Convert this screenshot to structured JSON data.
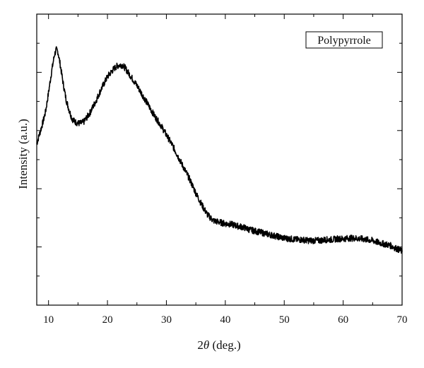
{
  "chart_data": {
    "type": "line",
    "title": "",
    "xlabel_prefix": "2",
    "xlabel_italic": "θ",
    "xlabel_suffix": " (deg.)",
    "ylabel": "Intensity (a.u.)",
    "xlim": [
      8,
      70
    ],
    "ylim": [
      0,
      1
    ],
    "x_ticks": [
      10,
      20,
      30,
      40,
      50,
      60,
      70
    ],
    "y_tick_labels_shown": false,
    "grid": false,
    "legend": {
      "label": "Polypyrrole",
      "placement": "top-right",
      "boxed": true
    },
    "line_color": "#000000",
    "series": [
      {
        "name": "Polypyrrole",
        "x": [
          8,
          8.5,
          9,
          9.5,
          10,
          10.5,
          11,
          11.3,
          11.6,
          12,
          12.5,
          13,
          13.5,
          14,
          14.5,
          15,
          15.5,
          16,
          16.5,
          17,
          17.5,
          18,
          19,
          20,
          21,
          21.5,
          22,
          22.5,
          23,
          23.5,
          24,
          25,
          26,
          27,
          28,
          29,
          30,
          31,
          32,
          33,
          34,
          35,
          36,
          37,
          38,
          39,
          40,
          41,
          42,
          43,
          44,
          45,
          46,
          47,
          48,
          49,
          50,
          51,
          52,
          53,
          54,
          55,
          56,
          57,
          58,
          59,
          60,
          61,
          62,
          63,
          64,
          65,
          66,
          67,
          68,
          69,
          70
        ],
        "y": [
          0.555,
          0.59,
          0.625,
          0.665,
          0.73,
          0.8,
          0.86,
          0.878,
          0.87,
          0.825,
          0.76,
          0.705,
          0.67,
          0.64,
          0.63,
          0.625,
          0.625,
          0.63,
          0.645,
          0.66,
          0.68,
          0.7,
          0.745,
          0.785,
          0.81,
          0.82,
          0.825,
          0.825,
          0.815,
          0.8,
          0.785,
          0.755,
          0.72,
          0.685,
          0.65,
          0.62,
          0.585,
          0.55,
          0.51,
          0.47,
          0.43,
          0.385,
          0.345,
          0.31,
          0.29,
          0.285,
          0.28,
          0.278,
          0.272,
          0.268,
          0.26,
          0.255,
          0.25,
          0.245,
          0.24,
          0.235,
          0.23,
          0.228,
          0.225,
          0.225,
          0.222,
          0.222,
          0.222,
          0.225,
          0.225,
          0.228,
          0.228,
          0.23,
          0.23,
          0.228,
          0.225,
          0.222,
          0.215,
          0.21,
          0.205,
          0.195,
          0.185
        ]
      }
    ]
  }
}
